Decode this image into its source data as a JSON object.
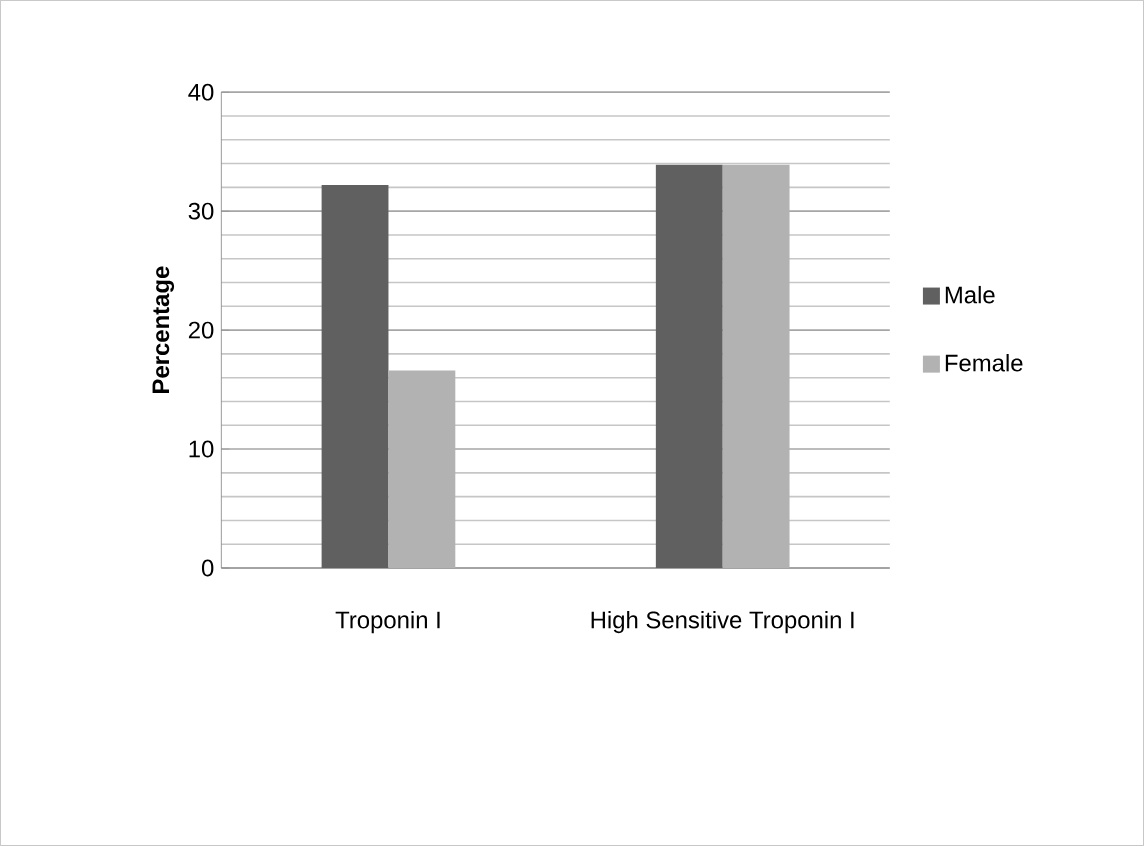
{
  "chart_data": {
    "type": "bar",
    "ylabel": "Percentage",
    "categories": [
      "Troponin I",
      "High Sensitive Troponin I"
    ],
    "series": [
      {
        "name": "Male",
        "color": "#606060",
        "values": [
          32.2,
          33.9
        ]
      },
      {
        "name": "Female",
        "color": "#b2b2b2",
        "values": [
          16.6,
          33.9
        ]
      }
    ],
    "ylim": [
      0,
      40
    ],
    "yticks": [
      0,
      10,
      20,
      30,
      40
    ],
    "grid": "y",
    "legend": "right"
  }
}
